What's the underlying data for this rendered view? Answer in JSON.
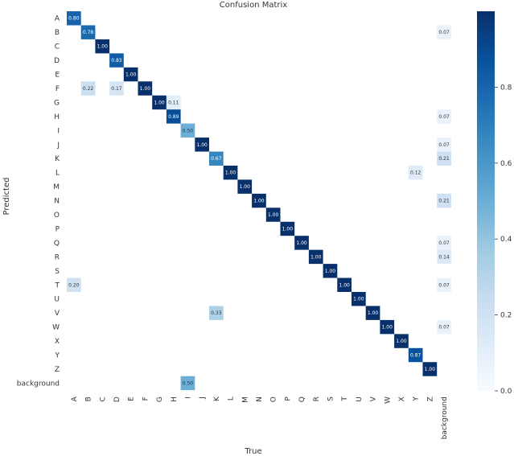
{
  "chart_data": {
    "type": "heatmap",
    "title": "Confusion Matrix",
    "xlabel": "True",
    "ylabel": "Predicted",
    "categories": [
      "A",
      "B",
      "C",
      "D",
      "E",
      "F",
      "G",
      "H",
      "I",
      "J",
      "K",
      "L",
      "M",
      "N",
      "O",
      "P",
      "Q",
      "R",
      "S",
      "T",
      "U",
      "V",
      "W",
      "X",
      "Y",
      "Z",
      "background"
    ],
    "colorbar": {
      "min": 0,
      "max": 1,
      "ticks": [
        "0.0",
        "0.2",
        "0.4",
        "0.6",
        "0.8"
      ],
      "colormap": "Blues"
    },
    "cells": [
      {
        "row": "A",
        "col": "A",
        "value": 0.8,
        "label": "0.80"
      },
      {
        "row": "B",
        "col": "B",
        "value": 0.78,
        "label": "0.78"
      },
      {
        "row": "B",
        "col": "background",
        "value": 0.07,
        "label": "0.07"
      },
      {
        "row": "C",
        "col": "C",
        "value": 1.0,
        "label": "1.00"
      },
      {
        "row": "D",
        "col": "D",
        "value": 0.83,
        "label": "0.83"
      },
      {
        "row": "E",
        "col": "E",
        "value": 1.0,
        "label": "1.00"
      },
      {
        "row": "F",
        "col": "B",
        "value": 0.22,
        "label": "0.22"
      },
      {
        "row": "F",
        "col": "D",
        "value": 0.17,
        "label": "0.17"
      },
      {
        "row": "F",
        "col": "F",
        "value": 1.0,
        "label": "1.00"
      },
      {
        "row": "G",
        "col": "G",
        "value": 1.0,
        "label": "1.00"
      },
      {
        "row": "G",
        "col": "H",
        "value": 0.11,
        "label": "0.11"
      },
      {
        "row": "H",
        "col": "H",
        "value": 0.89,
        "label": "0.89"
      },
      {
        "row": "H",
        "col": "background",
        "value": 0.07,
        "label": "0.07"
      },
      {
        "row": "I",
        "col": "I",
        "value": 0.5,
        "label": "0.50"
      },
      {
        "row": "J",
        "col": "J",
        "value": 1.0,
        "label": "1.00"
      },
      {
        "row": "J",
        "col": "background",
        "value": 0.07,
        "label": "0.07"
      },
      {
        "row": "K",
        "col": "K",
        "value": 0.67,
        "label": "0.67"
      },
      {
        "row": "K",
        "col": "background",
        "value": 0.21,
        "label": "0.21"
      },
      {
        "row": "L",
        "col": "L",
        "value": 1.0,
        "label": "1.00"
      },
      {
        "row": "L",
        "col": "Y",
        "value": 0.12,
        "label": "0.12"
      },
      {
        "row": "M",
        "col": "M",
        "value": 1.0,
        "label": "1.00"
      },
      {
        "row": "N",
        "col": "N",
        "value": 1.0,
        "label": "1.00"
      },
      {
        "row": "N",
        "col": "background",
        "value": 0.21,
        "label": "0.21"
      },
      {
        "row": "O",
        "col": "O",
        "value": 1.0,
        "label": "1.00"
      },
      {
        "row": "P",
        "col": "P",
        "value": 1.0,
        "label": "1.00"
      },
      {
        "row": "Q",
        "col": "Q",
        "value": 1.0,
        "label": "1.00"
      },
      {
        "row": "Q",
        "col": "background",
        "value": 0.07,
        "label": "0.07"
      },
      {
        "row": "R",
        "col": "R",
        "value": 1.0,
        "label": "1.00"
      },
      {
        "row": "R",
        "col": "background",
        "value": 0.14,
        "label": "0.14"
      },
      {
        "row": "S",
        "col": "S",
        "value": 1.0,
        "label": "1.00"
      },
      {
        "row": "T",
        "col": "A",
        "value": 0.2,
        "label": "0.20"
      },
      {
        "row": "T",
        "col": "T",
        "value": 1.0,
        "label": "1.00"
      },
      {
        "row": "T",
        "col": "background",
        "value": 0.07,
        "label": "0.07"
      },
      {
        "row": "U",
        "col": "U",
        "value": 1.0,
        "label": "1.00"
      },
      {
        "row": "V",
        "col": "K",
        "value": 0.33,
        "label": "0.33"
      },
      {
        "row": "V",
        "col": "V",
        "value": 1.0,
        "label": "1.00"
      },
      {
        "row": "W",
        "col": "W",
        "value": 1.0,
        "label": "1.00"
      },
      {
        "row": "W",
        "col": "background",
        "value": 0.07,
        "label": "0.07"
      },
      {
        "row": "X",
        "col": "X",
        "value": 1.0,
        "label": "1.00"
      },
      {
        "row": "Y",
        "col": "Y",
        "value": 0.87,
        "label": "0.87"
      },
      {
        "row": "Z",
        "col": "Z",
        "value": 1.0,
        "label": "1.00"
      },
      {
        "row": "background",
        "col": "I",
        "value": 0.5,
        "label": "0.50"
      }
    ]
  }
}
